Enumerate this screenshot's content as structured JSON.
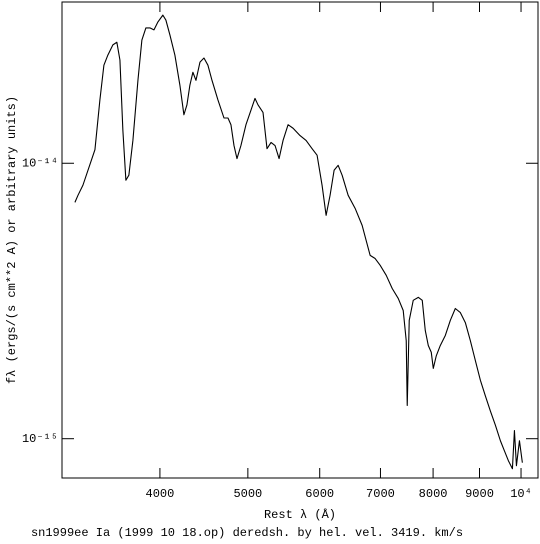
{
  "chart_data": {
    "type": "line",
    "title": "sn1999ee Ia (1999 10 18.op) deredsh. by hel. vel.  3419. km/s",
    "xlabel": "Rest λ (Å)",
    "ylabel": "fλ (ergs/(s cm**2 A) or arbitrary units)",
    "xlog": true,
    "ylog": true,
    "xlim": [
      3120,
      10440
    ],
    "ylim": [
      7.2e-16,
      3.85e-14
    ],
    "xticks": [
      4000,
      5000,
      6000,
      7000,
      8000,
      9000,
      {
        "value": 10000,
        "label": "10⁴"
      }
    ],
    "yticks": [
      {
        "value": 1e-15,
        "label": "10⁻¹⁵"
      },
      {
        "value": 1e-14,
        "label": "10⁻¹⁴"
      }
    ],
    "x": [
      3224,
      3249,
      3290,
      3392,
      3435,
      3470,
      3505,
      3550,
      3586,
      3614,
      3641,
      3669,
      3697,
      3735,
      3783,
      3821,
      3860,
      3900,
      3940,
      3980,
      4030,
      4061,
      4103,
      4155,
      4208,
      4251,
      4284,
      4316,
      4349,
      4383,
      4428,
      4473,
      4518,
      4565,
      4634,
      4706,
      4754,
      4790,
      4827,
      4864,
      4913,
      4976,
      5040,
      5091,
      5130,
      5196,
      5249,
      5303,
      5357,
      5412,
      5467,
      5537,
      5608,
      5708,
      5796,
      5885,
      5960,
      6036,
      6098,
      6160,
      6223,
      6287,
      6351,
      6449,
      6564,
      6682,
      6750,
      6819,
      6906,
      6995,
      7103,
      7212,
      7323,
      7416,
      7473,
      7492,
      7530,
      7607,
      7705,
      7783,
      7843,
      7903,
      7963,
      8004,
      8065,
      8148,
      8252,
      8358,
      8464,
      8573,
      8682,
      8793,
      8906,
      9020,
      9135,
      9252,
      9370,
      9490,
      9587,
      9684,
      9784,
      9834,
      9884,
      9960,
      10034
    ],
    "series": [
      {
        "color": "#000000",
        "values": [
          7.21e-15,
          7.65e-15,
          8.32e-15,
          1.12e-14,
          1.7e-14,
          2.27e-14,
          2.47e-14,
          2.69e-14,
          2.75e-14,
          2.37e-14,
          1.32e-14,
          8.68e-15,
          9.05e-15,
          1.21e-14,
          2e-14,
          2.8e-14,
          3.1e-14,
          3.1e-14,
          3.05e-14,
          3.26e-14,
          3.45e-14,
          3.31e-14,
          2.92e-14,
          2.47e-14,
          1.92e-14,
          1.5e-14,
          1.63e-14,
          1.92e-14,
          2.14e-14,
          2e-14,
          2.33e-14,
          2.41e-14,
          2.27e-14,
          2e-14,
          1.7e-14,
          1.46e-14,
          1.46e-14,
          1.38e-14,
          1.16e-14,
          1.04e-14,
          1.16e-14,
          1.38e-14,
          1.56e-14,
          1.72e-14,
          1.63e-14,
          1.53e-14,
          1.13e-14,
          1.19e-14,
          1.16e-14,
          1.04e-14,
          1.21e-14,
          1.38e-14,
          1.34e-14,
          1.26e-14,
          1.21e-14,
          1.13e-14,
          1.07e-14,
          8.32e-15,
          6.47e-15,
          7.65e-15,
          9.43e-15,
          9.83e-15,
          9.05e-15,
          7.65e-15,
          6.86e-15,
          5.95e-15,
          5.25e-15,
          4.63e-15,
          4.51e-15,
          4.26e-15,
          3.92e-15,
          3.51e-15,
          3.23e-15,
          2.92e-15,
          2.27e-15,
          1.32e-15,
          2.69e-15,
          3.18e-15,
          3.26e-15,
          3.18e-15,
          2.47e-15,
          2.18e-15,
          2.06e-15,
          1.8e-15,
          2e-15,
          2.18e-15,
          2.37e-15,
          2.69e-15,
          2.97e-15,
          2.87e-15,
          2.64e-15,
          2.27e-15,
          1.92e-15,
          1.63e-15,
          1.43e-15,
          1.26e-15,
          1.12e-15,
          9.83e-16,
          9.04e-16,
          8.32e-16,
          7.78e-16,
          1.07e-15,
          7.98e-16,
          9.83e-16,
          8.18e-16
        ]
      }
    ]
  }
}
